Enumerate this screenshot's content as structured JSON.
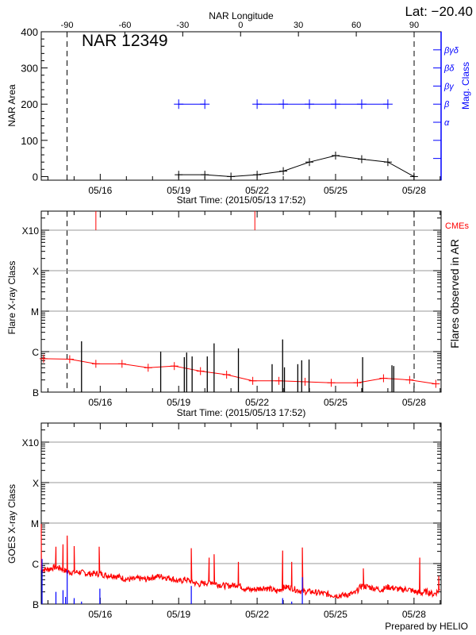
{
  "header": {
    "lat_label": "Lat: −20.40",
    "top_axis_label": "NAR Longitude",
    "region_label": "NAR 12349",
    "credit": "Prepared by HELIO"
  },
  "colors": {
    "area": "#000000",
    "mag_class": "#0000ff",
    "flare_bg": "#ff0000",
    "cme": "#ff0000",
    "goes_long": "#ff0000",
    "goes_short": "#0000ff",
    "grid": "#999999"
  },
  "chart_data": [
    {
      "type": "line",
      "xlabel": "Start Time: (2015/05/13 17:52)",
      "ylabel": "NAR Area",
      "y2label": "Mag. Class",
      "top_xlabel": "NAR Longitude",
      "ylim": [
        -10,
        400
      ],
      "x_start": "2015-05-13 17:52",
      "x_ticks": [
        {
          "label": "05/16",
          "date": "2015-05-16 00:00"
        },
        {
          "label": "05/19",
          "date": "2015-05-19 00:00"
        },
        {
          "label": "05/22",
          "date": "2015-05-22 00:00"
        },
        {
          "label": "05/25",
          "date": "2015-05-25 00:00"
        },
        {
          "label": "05/28",
          "date": "2015-05-28 00:00"
        }
      ],
      "y_ticks": [
        "0",
        "100",
        "200",
        "300",
        "400"
      ],
      "longitude_ticks": [
        "-90",
        "-60",
        "-30",
        "0",
        "30",
        "60",
        "90"
      ],
      "limb_longitudes": [
        -90,
        90
      ],
      "mag_class_ticks": [
        {
          "label": "",
          "area": 50
        },
        {
          "label": "",
          "area": 100
        },
        {
          "label": "α",
          "area": 150
        },
        {
          "label": "β",
          "area": 200
        },
        {
          "label": "βγ",
          "area": 250
        },
        {
          "label": "βδ",
          "area": 300
        },
        {
          "label": "βγδ",
          "area": 350
        }
      ],
      "series": [
        {
          "name": "NAR Area",
          "x": [
            "2015-05-19 00:00",
            "2015-05-20 00:00",
            "2015-05-21 00:00",
            "2015-05-22 00:00",
            "2015-05-23 00:00",
            "2015-05-24 00:00",
            "2015-05-25 00:00",
            "2015-05-26 00:00",
            "2015-05-27 00:00",
            "2015-05-28 00:00"
          ],
          "y": [
            5,
            5,
            0,
            5,
            15,
            40,
            58,
            48,
            40,
            0
          ]
        },
        {
          "name": "Mag. Class",
          "x": [
            "2015-05-19 00:00",
            "2015-05-20 00:00",
            "2015-05-21 00:00",
            "2015-05-22 00:00",
            "2015-05-23 00:00",
            "2015-05-24 00:00",
            "2015-05-25 00:00",
            "2015-05-26 00:00",
            "2015-05-27 00:00"
          ],
          "y": [
            "β",
            "β",
            null,
            "β",
            "β",
            "β",
            "β",
            "β",
            "β"
          ]
        }
      ]
    },
    {
      "type": "line",
      "xlabel": "Start Time: (2015/05/13 17:52)",
      "ylabel": "Flare X-ray Class",
      "y2label": "Flares observed in AR",
      "scale": "log",
      "ylim": [
        1e-07,
        0.003
      ],
      "grid": true,
      "y_ticks": [
        {
          "label": "B",
          "value": 1e-07
        },
        {
          "label": "C",
          "value": 1e-06
        },
        {
          "label": "M",
          "value": 1e-05
        },
        {
          "label": "X",
          "value": 0.0001
        },
        {
          "label": "X10",
          "value": 0.001
        }
      ],
      "cme_label": "CMEs",
      "background": {
        "x": [
          "2015-05-13 20:00",
          "2015-05-14 20:00",
          "2015-05-15 20:00",
          "2015-05-16 20:00",
          "2015-05-17 20:00",
          "2015-05-18 20:00",
          "2015-05-19 20:00",
          "2015-05-20 20:00",
          "2015-05-21 20:00",
          "2015-05-22 20:00",
          "2015-05-23 20:00",
          "2015-05-24 20:00",
          "2015-05-25 20:00",
          "2015-05-26 20:00",
          "2015-05-27 20:00",
          "2015-05-28 20:00"
        ],
        "y": [
          6.7e-07,
          6.5e-07,
          5e-07,
          5e-07,
          4e-07,
          4.4e-07,
          3.3e-07,
          2.7e-07,
          1.9e-07,
          1.9e-07,
          1.8e-07,
          1.7e-07,
          1.7e-07,
          2.2e-07,
          2e-07,
          1.6e-07
        ]
      },
      "flares": {
        "x": [
          "2015-05-15 06:50",
          "2015-05-18 07:30",
          "2015-05-19 05:10",
          "2015-05-19 07:20",
          "2015-05-19 12:20",
          "2015-05-20 02:15",
          "2015-05-20 08:30",
          "2015-05-21 06:50",
          "2015-05-22 13:45",
          "2015-05-22 23:25",
          "2015-05-23 01:05",
          "2015-05-23 13:20",
          "2015-05-23 16:55",
          "2015-05-23 23:40",
          "2015-05-26 00:50",
          "2015-05-27 03:45",
          "2015-05-27 05:25"
        ],
        "y": [
          1.8e-06,
          1e-06,
          7.3e-07,
          9.5e-07,
          7.6e-07,
          7.6e-07,
          1.6e-06,
          1.2e-06,
          4.9e-07,
          2e-06,
          4.1e-07,
          4.9e-07,
          6.1e-07,
          6.4e-07,
          7.3e-07,
          4.6e-07,
          4.4e-07
        ]
      },
      "cmes": [
        "2015-05-15 20:00",
        "2015-05-21 21:55"
      ]
    },
    {
      "type": "line",
      "ylabel": "GOES X-ray Class",
      "scale": "log",
      "ylim": [
        1e-07,
        0.003
      ],
      "grid": true,
      "y_ticks": [
        {
          "label": "B",
          "value": 1e-07
        },
        {
          "label": "C",
          "value": 1e-06
        },
        {
          "label": "M",
          "value": 1e-05
        },
        {
          "label": "X",
          "value": 0.0001
        },
        {
          "label": "X10",
          "value": 0.001
        }
      ],
      "long_channel_baseline": {
        "x_start": "2015-05-13 18:00",
        "step_hours": 6,
        "y": [
          7e-07,
          7e-07,
          8e-07,
          7.5e-07,
          6e-07,
          6e-07,
          6e-07,
          5.5e-07,
          5.5e-07,
          5.5e-07,
          5e-07,
          5e-07,
          4.5e-07,
          4e-07,
          4e-07,
          4.2e-07,
          4e-07,
          4.5e-07,
          4.8e-07,
          4.5e-07,
          4.2e-07,
          3.5e-07,
          4e-07,
          3.5e-07,
          3e-07,
          3.2e-07,
          3.5e-07,
          3e-07,
          2.8e-07,
          2.8e-07,
          3e-07,
          2.4e-07,
          2.2e-07,
          2.3e-07,
          2.5e-07,
          2.3e-07,
          2e-07,
          2.5e-07,
          2.6e-07,
          2.2e-07,
          2e-07,
          2e-07,
          1.9e-07,
          1.8e-07,
          1.7e-07,
          1.6e-07,
          1.6e-07,
          1.7e-07,
          1.8e-07,
          2.8e-07,
          2.6e-07,
          2.4e-07,
          2.2e-07,
          2.6e-07,
          2.4e-07,
          2.2e-07,
          2.3e-07,
          2e-07,
          1.8e-07,
          2e-07,
          1.7e-07,
          2.2e-07
        ]
      },
      "long_channel_peaks": {
        "x": [
          "2015-05-13 17:52",
          "2015-05-14 07:20",
          "2015-05-14 13:50",
          "2015-05-14 17:40",
          "2015-05-15 00:05",
          "2015-05-15 23:00",
          "2015-05-19 11:35",
          "2015-05-20 03:55",
          "2015-05-20 08:30",
          "2015-05-21 06:50",
          "2015-05-22 23:25",
          "2015-05-23 07:45",
          "2015-05-23 17:30",
          "2015-05-26 01:30",
          "2015-05-28 05:15",
          "2015-05-28 22:45"
        ],
        "y": [
          9.5e-06,
          2.6e-06,
          3e-06,
          4.9e-06,
          2.7e-06,
          2.6e-06,
          2.4e-06,
          1.4e-06,
          1.7e-06,
          1.1e-06,
          2.1e-06,
          1.1e-06,
          2.5e-06,
          7.6e-07,
          1.4e-06,
          4.9e-07
        ]
      },
      "short_channel": {
        "x": [
          "2015-05-13 17:52",
          "2015-05-14 07:20",
          "2015-05-14 13:50",
          "2015-05-14 16:10",
          "2015-05-14 17:40",
          "2015-05-15 00:05",
          "2015-05-15 06:50",
          "2015-05-15 23:40",
          "2015-05-19 11:35",
          "2015-05-22 23:25",
          "2015-05-23 07:45",
          "2015-05-23 17:30"
        ],
        "y": [
          1.3e-06,
          2e-07,
          2.2e-07,
          1.5e-07,
          6.9e-07,
          1.4e-07,
          1.15e-07,
          2.4e-07,
          2.8e-07,
          1.4e-07,
          1.15e-07,
          4.6e-07
        ]
      }
    }
  ]
}
